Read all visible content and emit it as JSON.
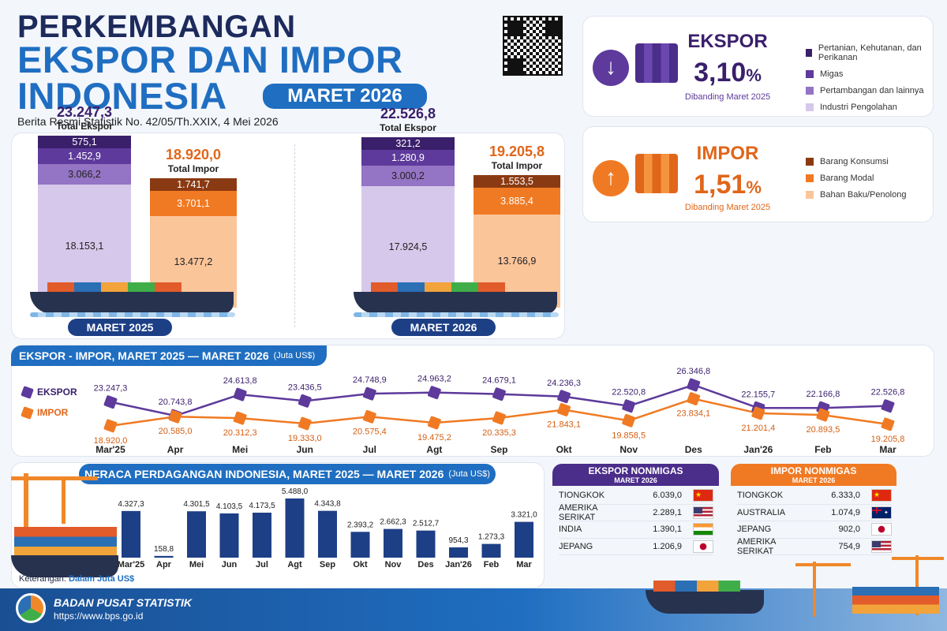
{
  "header": {
    "line1": "PERKEMBANGAN",
    "line2": "EKSPOR DAN IMPOR",
    "line3": "INDONESIA",
    "period_badge": "MARET 2026",
    "subtitle": "Berita Resmi Statistik No. 42/05/Th.XXIX, 4 Mei 2026"
  },
  "ekspor_card": {
    "title": "EKSPOR",
    "value": "3,10",
    "unit": "%",
    "note": "Dibanding Maret 2025",
    "legend": [
      "Pertanian, Kehutanan, dan Perikanan",
      "Migas",
      "Pertambangan dan lainnya",
      "Industri Pengolahan"
    ],
    "colors": [
      "#3a1f6b",
      "#5d3a9b",
      "#9474c4",
      "#d6c8ea"
    ]
  },
  "impor_card": {
    "title": "IMPOR",
    "value": "1,51",
    "unit": "%",
    "note": "Dibanding Maret 2025",
    "legend": [
      "Barang Konsumsi",
      "Barang Modal",
      "Bahan Baku/Penolong"
    ],
    "colors": [
      "#8a3a12",
      "#f07a23",
      "#fbc59a"
    ]
  },
  "comparison": [
    {
      "period": "MARET 2025",
      "ekspor_total": "23.247,3",
      "ekspor_label": "Total Ekspor",
      "ekspor_parts": [
        "575,1",
        "1.452,9",
        "3.066,2",
        "18.153,1"
      ],
      "impor_total": "18.920,0",
      "impor_label": "Total Impor",
      "impor_parts": [
        "1.741,7",
        "3.701,1",
        "13.477,2"
      ]
    },
    {
      "period": "MARET 2026",
      "ekspor_total": "22.526,8",
      "ekspor_label": "Total Ekspor",
      "ekspor_parts": [
        "321,2",
        "1.280,9",
        "3.000,2",
        "17.924,5"
      ],
      "impor_total": "19.205,8",
      "impor_label": "Total Impor",
      "impor_parts": [
        "1.553,5",
        "3.885,4",
        "13.766,9"
      ]
    }
  ],
  "trend": {
    "title": "EKSPOR - IMPOR, MARET 2025 — MARET 2026",
    "unit": "(Juta US$)",
    "legend_ekspor": "EKSPOR",
    "legend_impor": "IMPOR",
    "ekspor_labels": [
      "23.247,3",
      "20.743,8",
      "24.613,8",
      "23.436,5",
      "24.748,9",
      "24.963,2",
      "24.679,1",
      "24.236,3",
      "22.520,8",
      "26.346,8",
      "22.155,7",
      "22.166,8",
      "22.526,8"
    ],
    "impor_labels": [
      "18.920,0",
      "20.585,0",
      "20.312,3",
      "19.333,0",
      "20.575,4",
      "19.475,2",
      "20.335,3",
      "21.843,1",
      "19.858,5",
      "23.834,1",
      "21.201,4",
      "20.893,5",
      "19.205,8"
    ]
  },
  "neraca": {
    "title": "NERACA PERDAGANGAN INDONESIA, MARET 2025 — MARET 2026",
    "unit": "(Juta US$)",
    "note_label": "Keterangan:",
    "note_value": "Dalam Juta US$",
    "labels": [
      "4.327,3",
      "158,8",
      "4.301,5",
      "4.103,5",
      "4.173,5",
      "5.488,0",
      "4.343,8",
      "2.393,2",
      "2.662,3",
      "2.512,7",
      "954,3",
      "1.273,3",
      "3.321,0"
    ]
  },
  "ekspor_nonmigas": {
    "title": "EKSPOR NONMIGAS",
    "subtitle": "MARET 2026",
    "rows": [
      {
        "country": "TIONGKOK",
        "value": "6.039,0",
        "flag": "china-flag-icon"
      },
      {
        "country": "AMERIKA SERIKAT",
        "value": "2.289,1",
        "flag": "usa-flag-icon"
      },
      {
        "country": "INDIA",
        "value": "1.390,1",
        "flag": "india-flag-icon"
      },
      {
        "country": "JEPANG",
        "value": "1.206,9",
        "flag": "japan-flag-icon"
      }
    ]
  },
  "impor_nonmigas": {
    "title": "IMPOR NONMIGAS",
    "subtitle": "MARET 2026",
    "rows": [
      {
        "country": "TIONGKOK",
        "value": "6.333,0",
        "flag": "china-flag-icon"
      },
      {
        "country": "AUSTRALIA",
        "value": "1.074,9",
        "flag": "australia-flag-icon"
      },
      {
        "country": "JEPANG",
        "value": "902,0",
        "flag": "japan-flag-icon"
      },
      {
        "country": "AMERIKA SERIKAT",
        "value": "754,9",
        "flag": "usa-flag-icon"
      }
    ]
  },
  "footer": {
    "org": "BADAN PUSAT STATISTIK",
    "url": "https://www.bps.go.id"
  },
  "chart_data": [
    {
      "type": "bar",
      "title": "",
      "categories": [
        "MARET 2025",
        "MARET 2026"
      ],
      "series": [
        {
          "name": "Pertanian, Kehutanan, dan Perikanan",
          "values": [
            575.1,
            321.2
          ]
        },
        {
          "name": "Migas",
          "values": [
            1452.9,
            1280.9
          ]
        },
        {
          "name": "Pertambangan dan lainnya",
          "values": [
            3066.2,
            3000.2
          ]
        },
        {
          "name": "Industri Pengolahan",
          "values": [
            18153.1,
            17924.5
          ]
        },
        {
          "name": "Barang Konsumsi",
          "values": [
            1741.7,
            1553.5
          ]
        },
        {
          "name": "Barang Modal",
          "values": [
            3701.1,
            3885.4
          ]
        },
        {
          "name": "Bahan Baku/Penolong",
          "values": [
            13477.2,
            13766.9
          ]
        }
      ]
    },
    {
      "type": "line",
      "title": "EKSPOR - IMPOR, MARET 2025 — MARET 2026",
      "categories": [
        "Mar'25",
        "Apr",
        "Mei",
        "Jun",
        "Jul",
        "Agt",
        "Sep",
        "Okt",
        "Nov",
        "Des",
        "Jan'26",
        "Feb",
        "Mar"
      ],
      "series": [
        {
          "name": "EKSPOR",
          "values": [
            23247.3,
            20743.8,
            24613.8,
            23436.5,
            24748.9,
            24963.2,
            24679.1,
            24236.3,
            22520.8,
            26346.8,
            22155.7,
            22166.8,
            22526.8
          ]
        },
        {
          "name": "IMPOR",
          "values": [
            18920.0,
            20585.0,
            20312.3,
            19333.0,
            20575.4,
            19475.2,
            20335.3,
            21843.1,
            19858.5,
            23834.1,
            21201.4,
            20893.5,
            19205.8
          ]
        }
      ]
    },
    {
      "type": "bar",
      "title": "NERACA PERDAGANGAN INDONESIA, MARET 2025 — MARET 2026",
      "categories": [
        "Mar'25",
        "Apr",
        "Mei",
        "Jun",
        "Jul",
        "Agt",
        "Sep",
        "Okt",
        "Nov",
        "Des",
        "Jan'26",
        "Feb",
        "Mar"
      ],
      "values": [
        4327.3,
        158.8,
        4301.5,
        4103.5,
        4173.5,
        5488.0,
        4343.8,
        2393.2,
        2662.3,
        2512.7,
        954.3,
        1273.3,
        3321.0
      ]
    }
  ]
}
